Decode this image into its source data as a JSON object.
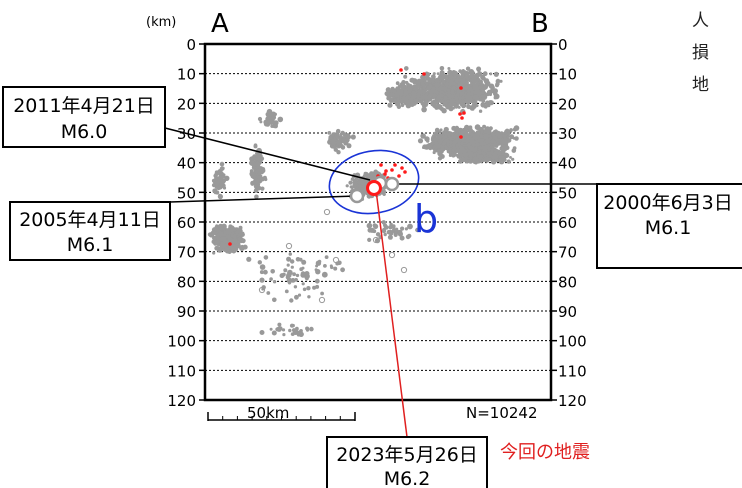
{
  "chart_data": {
    "type": "scatter",
    "unit_label": "(km)",
    "endpoint_left": "A",
    "endpoint_right": "B",
    "ylim": [
      0,
      120
    ],
    "y_reversed": true,
    "y_ticks": [
      "0",
      "10",
      "20",
      "30",
      "40",
      "50",
      "60",
      "70",
      "80",
      "90",
      "100",
      "110",
      "120"
    ],
    "grid": "horizontal dashed every 10 km",
    "scale_bar": "50km",
    "count_label": "N=10242",
    "region_label": "b",
    "region_color": "#1a34d6",
    "background_color": "#999999",
    "highlight_color": "#ff1a1a",
    "main_event": {
      "label": "今回の地震",
      "date": "2023年5月26日",
      "magnitude": "M6.2",
      "depth_km": 49
    },
    "past_events": [
      {
        "date": "2011年4月21日",
        "magnitude": "M6.0",
        "depth_km": 48
      },
      {
        "date": "2005年4月11日",
        "magnitude": "M6.1",
        "depth_km": 51
      },
      {
        "date": "2000年6月3日",
        "magnitude": "M6.1",
        "depth_km": 47
      }
    ]
  },
  "side_text": [
    "人",
    "損",
    "地"
  ]
}
